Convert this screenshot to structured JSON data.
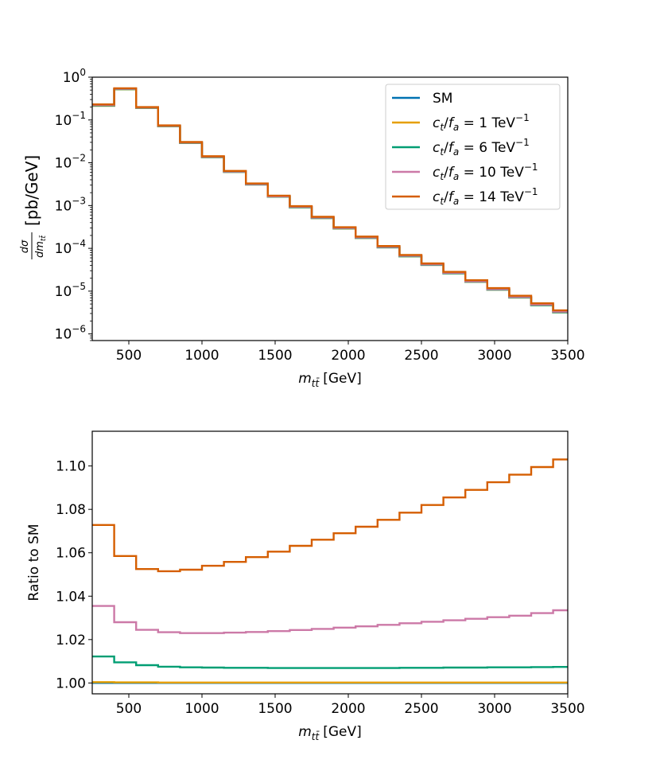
{
  "chart_data": [
    {
      "type": "line",
      "step": true,
      "ylabel": "dσ/dm_tt̄ [pb/GeV]",
      "ylabel_parts": {
        "frac_num": "dσ",
        "frac_den": "dm",
        "frac_den_sub": "tt̄",
        "unit": "[pb/GeV]"
      },
      "xlabel": "m_tt̄ [GeV]",
      "xlabel_parts": {
        "base": "m",
        "sub": "tt̄",
        "unit": "[GeV]"
      },
      "xlim": [
        250,
        3500
      ],
      "ylim": [
        7e-07,
        1.0
      ],
      "yscale": "log",
      "xticks": [
        "500",
        "1000",
        "1500",
        "2000",
        "2500",
        "3000",
        "3500"
      ],
      "yticks": [
        {
          "base": "10",
          "exp": "0"
        },
        {
          "base": "10",
          "exp": "−1"
        },
        {
          "base": "10",
          "exp": "−2"
        },
        {
          "base": "10",
          "exp": "−3"
        },
        {
          "base": "10",
          "exp": "−4"
        },
        {
          "base": "10",
          "exp": "−5"
        },
        {
          "base": "10",
          "exp": "−6"
        }
      ],
      "legend_position": "top-right",
      "bin_edges": [
        250,
        400,
        550,
        700,
        850,
        1000,
        1150,
        1300,
        1450,
        1600,
        1750,
        1900,
        2050,
        2200,
        2350,
        2500,
        2650,
        2800,
        2950,
        3100,
        3250,
        3400,
        3550
      ],
      "series": [
        {
          "name": "SM",
          "color": "#0072b2",
          "values": [
            0.215,
            0.52,
            0.19,
            0.071,
            0.029,
            0.0135,
            0.0061,
            0.0031,
            0.0016,
            0.00091,
            0.00051,
            0.00029,
            0.000175,
            0.000105,
            6.5e-05,
            4.1e-05,
            2.6e-05,
            1.65e-05,
            1.08e-05,
            7.1e-06,
            4.7e-06,
            3.2e-06
          ]
        },
        {
          "name": "c_t/f_a = 1 TeV⁻¹",
          "color": "#e69f00",
          "values": [
            0.215,
            0.52,
            0.19,
            0.071,
            0.029,
            0.0135,
            0.0061,
            0.0031,
            0.0016,
            0.00091,
            0.00051,
            0.00029,
            0.000175,
            0.000105,
            6.5e-05,
            4.1e-05,
            2.6e-05,
            1.65e-05,
            1.08e-05,
            7.1e-06,
            4.7e-06,
            3.2e-06
          ]
        },
        {
          "name": "c_t/f_a = 6 TeV⁻¹",
          "color": "#009e73",
          "values": [
            0.218,
            0.525,
            0.192,
            0.0715,
            0.0292,
            0.0136,
            0.00614,
            0.00312,
            0.00161,
            0.000916,
            0.000513,
            0.000292,
            0.000176,
            0.000106,
            6.55e-05,
            4.13e-05,
            2.62e-05,
            1.66e-05,
            1.09e-05,
            7.15e-06,
            4.73e-06,
            3.22e-06
          ]
        },
        {
          "name": "c_t/f_a = 10 TeV⁻¹",
          "color": "#cc79a7",
          "values": [
            0.223,
            0.535,
            0.195,
            0.0727,
            0.0297,
            0.0138,
            0.00624,
            0.00317,
            0.00164,
            0.000932,
            0.000523,
            0.000298,
            0.00018,
            0.000108,
            6.7e-05,
            4.22e-05,
            2.68e-05,
            1.7e-05,
            1.11e-05,
            7.32e-06,
            4.85e-06,
            3.31e-06
          ]
        },
        {
          "name": "c_t/f_a = 14 TeV⁻¹",
          "color": "#d55e00",
          "values": [
            0.231,
            0.55,
            0.2,
            0.0747,
            0.0305,
            0.0142,
            0.00644,
            0.00328,
            0.0017,
            0.000968,
            0.000545,
            0.000311,
            0.000188,
            0.000113,
            7.01e-05,
            4.43e-05,
            2.82e-05,
            1.8e-05,
            1.18e-05,
            7.8e-06,
            5.18e-06,
            3.55e-06
          ]
        }
      ]
    },
    {
      "type": "line",
      "step": true,
      "ylabel": "Ratio to SM",
      "xlabel": "m_tt̄ [GeV]",
      "xlabel_parts": {
        "base": "m",
        "sub": "tt̄",
        "unit": "[GeV]"
      },
      "xlim": [
        250,
        3500
      ],
      "ylim": [
        0.995,
        1.116
      ],
      "xticks": [
        "500",
        "1000",
        "1500",
        "2000",
        "2500",
        "3000",
        "3500"
      ],
      "yticks": [
        "1.00",
        "1.02",
        "1.04",
        "1.06",
        "1.08",
        "1.10"
      ],
      "bin_edges": [
        250,
        400,
        550,
        700,
        850,
        1000,
        1150,
        1300,
        1450,
        1600,
        1750,
        1900,
        2050,
        2200,
        2350,
        2500,
        2650,
        2800,
        2950,
        3100,
        3250,
        3400,
        3550
      ],
      "series": [
        {
          "name": "SM",
          "color": "#0072b2",
          "values": [
            1.0,
            1.0,
            1.0,
            1.0,
            1.0,
            1.0,
            1.0,
            1.0,
            1.0,
            1.0,
            1.0,
            1.0,
            1.0,
            1.0,
            1.0,
            1.0,
            1.0,
            1.0,
            1.0,
            1.0,
            1.0,
            1.0
          ]
        },
        {
          "name": "c_t/f_a = 1 TeV⁻¹",
          "color": "#e69f00",
          "values": [
            1.0004,
            1.0003,
            1.0003,
            1.0002,
            1.0002,
            1.0002,
            1.0002,
            1.0002,
            1.0002,
            1.0002,
            1.0002,
            1.0002,
            1.0002,
            1.0002,
            1.0002,
            1.0002,
            1.0002,
            1.0002,
            1.0002,
            1.0002,
            1.0002,
            1.0002
          ]
        },
        {
          "name": "c_t/f_a = 6 TeV⁻¹",
          "color": "#009e73",
          "values": [
            1.0122,
            1.0095,
            1.0082,
            1.0075,
            1.0072,
            1.0071,
            1.007,
            1.007,
            1.0069,
            1.0069,
            1.0069,
            1.0069,
            1.0069,
            1.0069,
            1.007,
            1.007,
            1.0071,
            1.0071,
            1.0072,
            1.0072,
            1.0073,
            1.0074
          ]
        },
        {
          "name": "c_t/f_a = 10 TeV⁻¹",
          "color": "#cc79a7",
          "values": [
            1.0355,
            1.028,
            1.0245,
            1.0234,
            1.023,
            1.023,
            1.0232,
            1.0235,
            1.0239,
            1.0244,
            1.0249,
            1.0255,
            1.0261,
            1.0268,
            1.0275,
            1.0282,
            1.0289,
            1.0296,
            1.0303,
            1.031,
            1.0322,
            1.0335
          ]
        },
        {
          "name": "c_t/f_a = 14 TeV⁻¹",
          "color": "#d55e00",
          "values": [
            1.0728,
            1.0585,
            1.0525,
            1.0515,
            1.0522,
            1.054,
            1.0558,
            1.058,
            1.0605,
            1.0632,
            1.066,
            1.069,
            1.072,
            1.0752,
            1.0785,
            1.082,
            1.0855,
            1.089,
            1.0925,
            1.096,
            1.0995,
            1.103
          ]
        }
      ]
    }
  ]
}
